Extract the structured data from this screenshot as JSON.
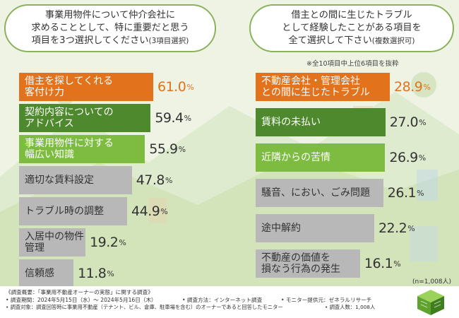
{
  "left": {
    "question_lines": [
      "事業用物件について仲介会社に",
      "求めることとして、特に重要だと思う"
    ],
    "question_last": "項目を3つ選択してください",
    "question_note": "(3項目選択)"
  },
  "right": {
    "question_lines": [
      "借主との間に生じたトラブル",
      "として経験したことがある項目を"
    ],
    "question_last": "全て選択して下さい",
    "question_note": "(複数選択可)",
    "note": "※全10項目中上位6項目を抜粋"
  },
  "colors": {
    "orange": "#e2731c",
    "dark_green": "#4e8a2d",
    "light_green": "#7dbc41",
    "gray": "#b8b8b8",
    "value_text": "#333333",
    "value_highlight": "#e2731c"
  },
  "chart_data": [
    {
      "type": "bar",
      "orientation": "horizontal",
      "categories": [
        "借主を探してくれる\n客付け力",
        "契約内容についての\nアドバイス",
        "事業用物件に対する\n幅広い知識",
        "適切な賃料設定",
        "トラブル時の調整",
        "入居中の物件管理",
        "信頼感"
      ],
      "values": [
        61.0,
        59.4,
        55.9,
        47.8,
        44.9,
        19.2,
        11.8
      ],
      "value_labels": [
        "61.0",
        "59.4",
        "55.9",
        "47.8",
        "44.9",
        "19.2",
        "11.8"
      ],
      "unit": "%",
      "bar_colors": [
        "orange",
        "dark_green",
        "light_green",
        "gray",
        "gray",
        "gray",
        "gray"
      ]
    },
    {
      "type": "bar",
      "orientation": "horizontal",
      "categories": [
        "不動産会社・管理会社\nとの間に生じたトラブル",
        "賃料の未払い",
        "近隣からの苦情",
        "騒音、におい、ごみ問題",
        "途中解約",
        "不動産の価値を\n損なう行為の発生"
      ],
      "values": [
        28.9,
        27.0,
        26.9,
        26.1,
        22.2,
        16.1
      ],
      "value_labels": [
        "28.9",
        "27.0",
        "26.9",
        "26.1",
        "22.2",
        "16.1"
      ],
      "unit": "%",
      "bar_colors": [
        "orange",
        "dark_green",
        "light_green",
        "gray",
        "gray",
        "gray"
      ],
      "note": "(n=1,008人)"
    }
  ],
  "footer": {
    "title": "《調査概要：「事業用不動産オーナーの実態」に関する調査》",
    "period": "• 調査期間：2024年5月15日（水）～ 2024年5月16日（木）",
    "method": "• 調査方法：インターネット調査",
    "provider": "• モニター提供元：ゼネラルリサーチ",
    "target": "• 調査対象：調査回答時に事業用不動産（テナント、ビル、倉庫、駐車場を含む）のオーナーであると回答したモニター",
    "count": "• 調査人数：1,008人"
  }
}
